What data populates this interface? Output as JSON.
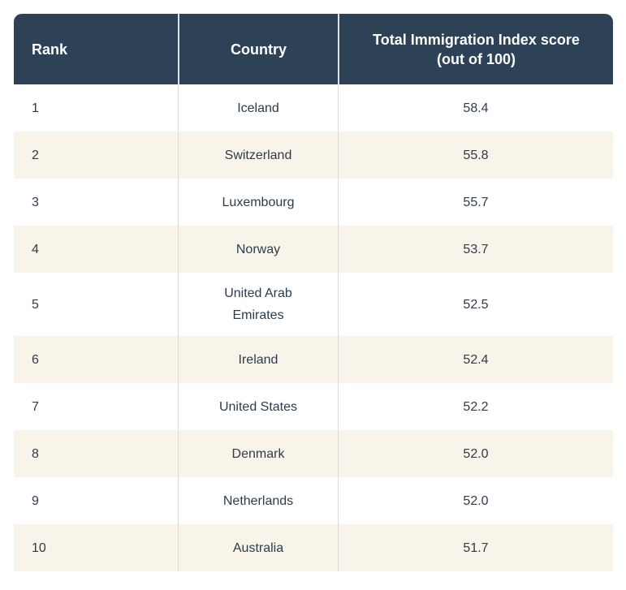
{
  "colors": {
    "header_bg": "#2d4157",
    "header_text": "#ffffff",
    "row_alt_bg": "#f9f4ea",
    "body_text": "#2c3c4e",
    "divider": "#dcdcdc"
  },
  "table": {
    "columns": [
      {
        "key": "rank",
        "label": "Rank"
      },
      {
        "key": "country",
        "label": "Country"
      },
      {
        "key": "score",
        "label": "Total Immigration Index score\n(out of 100)"
      }
    ],
    "rows": [
      {
        "rank": "1",
        "country": "Iceland",
        "score": "58.4"
      },
      {
        "rank": "2",
        "country": "Switzerland",
        "score": "55.8"
      },
      {
        "rank": "3",
        "country": "Luxembourg",
        "score": "55.7"
      },
      {
        "rank": "4",
        "country": "Norway",
        "score": "53.7"
      },
      {
        "rank": "5",
        "country": "United Arab Emirates",
        "score": "52.5"
      },
      {
        "rank": "6",
        "country": "Ireland",
        "score": "52.4"
      },
      {
        "rank": "7",
        "country": "United States",
        "score": "52.2"
      },
      {
        "rank": "8",
        "country": "Denmark",
        "score": "52.0"
      },
      {
        "rank": "9",
        "country": "Netherlands",
        "score": "52.0"
      },
      {
        "rank": "10",
        "country": "Australia",
        "score": "51.7"
      }
    ]
  },
  "chart_data": {
    "type": "table",
    "title": "",
    "columns": [
      "Rank",
      "Country",
      "Total Immigration Index score (out of 100)"
    ],
    "rows": [
      [
        1,
        "Iceland",
        58.4
      ],
      [
        2,
        "Switzerland",
        55.8
      ],
      [
        3,
        "Luxembourg",
        55.7
      ],
      [
        4,
        "Norway",
        53.7
      ],
      [
        5,
        "United Arab Emirates",
        52.5
      ],
      [
        6,
        "Ireland",
        52.4
      ],
      [
        7,
        "United States",
        52.2
      ],
      [
        8,
        "Denmark",
        52.0
      ],
      [
        9,
        "Netherlands",
        52.0
      ],
      [
        10,
        "Australia",
        51.7
      ]
    ]
  }
}
